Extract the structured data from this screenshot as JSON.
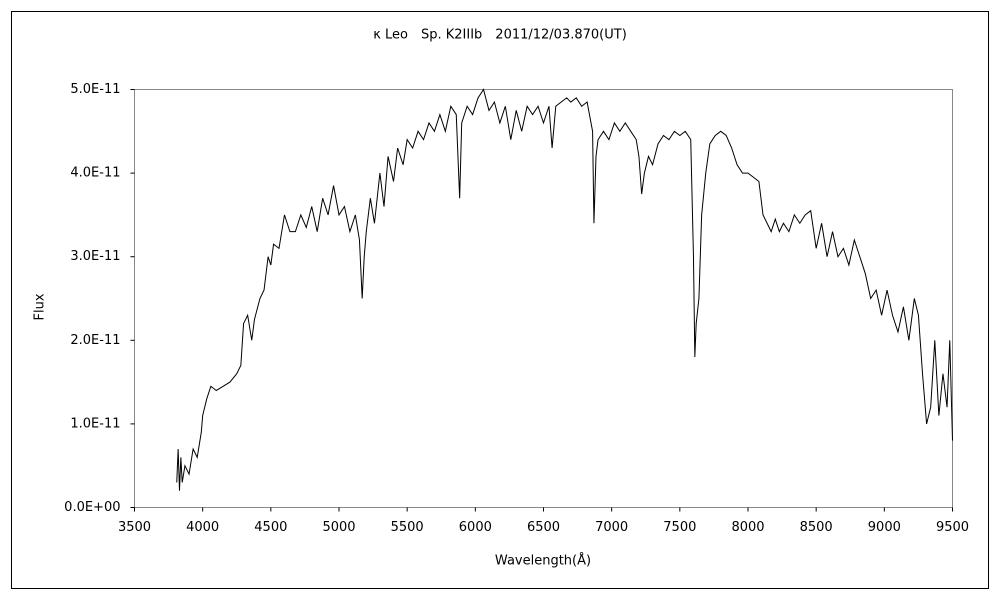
{
  "chart_data": {
    "type": "line",
    "title": "κ Leo　Sp. K2IIIb　2011/12/03.870(UT)",
    "x_label": "Wavelength(Å)",
    "y_label": "Flux",
    "xlim": [
      3500,
      9500
    ],
    "xticks": [
      3500,
      4000,
      4500,
      5000,
      5500,
      6000,
      6500,
      7000,
      7500,
      8000,
      8500,
      9000,
      9500
    ],
    "ylim": [
      0,
      5e-11
    ],
    "yticks": [
      {
        "value": 0,
        "label": "0.0E+00"
      },
      {
        "value": 1e-11,
        "label": "1.0E-11"
      },
      {
        "value": 2e-11,
        "label": "2.0E-11"
      },
      {
        "value": 3e-11,
        "label": "3.0E-11"
      },
      {
        "value": 4e-11,
        "label": "4.0E-11"
      },
      {
        "value": 5e-11,
        "label": "5.0E-11"
      }
    ],
    "grid": false,
    "color": "#000000",
    "x": [
      3810,
      3820,
      3830,
      3840,
      3850,
      3870,
      3900,
      3930,
      3960,
      3990,
      4000,
      4030,
      4060,
      4100,
      4150,
      4200,
      4250,
      4280,
      4300,
      4330,
      4360,
      4380,
      4420,
      4450,
      4480,
      4500,
      4520,
      4560,
      4600,
      4640,
      4680,
      4720,
      4760,
      4800,
      4840,
      4880,
      4920,
      4960,
      5000,
      5040,
      5080,
      5120,
      5150,
      5170,
      5185,
      5200,
      5230,
      5260,
      5300,
      5330,
      5360,
      5400,
      5430,
      5470,
      5500,
      5540,
      5580,
      5620,
      5660,
      5700,
      5740,
      5780,
      5820,
      5860,
      5885,
      5900,
      5940,
      5980,
      6020,
      6060,
      6100,
      6140,
      6180,
      6220,
      6260,
      6300,
      6340,
      6380,
      6420,
      6460,
      6500,
      6540,
      6563,
      6590,
      6630,
      6670,
      6700,
      6740,
      6780,
      6820,
      6860,
      6870,
      6885,
      6900,
      6940,
      6980,
      7020,
      7060,
      7100,
      7140,
      7180,
      7200,
      7220,
      7240,
      7270,
      7300,
      7340,
      7380,
      7420,
      7460,
      7500,
      7540,
      7580,
      7600,
      7610,
      7620,
      7640,
      7660,
      7690,
      7720,
      7760,
      7800,
      7840,
      7880,
      7920,
      7960,
      8000,
      8040,
      8080,
      8110,
      8140,
      8170,
      8200,
      8230,
      8260,
      8300,
      8340,
      8380,
      8420,
      8460,
      8500,
      8540,
      8580,
      8620,
      8660,
      8700,
      8740,
      8780,
      8820,
      8860,
      8900,
      8940,
      8980,
      9020,
      9060,
      9100,
      9140,
      9180,
      9220,
      9250,
      9280,
      9310,
      9340,
      9370,
      9400,
      9430,
      9460,
      9480,
      9500
    ],
    "values": [
      3e-12,
      7e-12,
      2e-12,
      6e-12,
      3e-12,
      5e-12,
      4e-12,
      7e-12,
      6e-12,
      9e-12,
      1.1e-11,
      1.3e-11,
      1.45e-11,
      1.4e-11,
      1.45e-11,
      1.5e-11,
      1.6e-11,
      1.7e-11,
      2.2e-11,
      2.3e-11,
      2e-11,
      2.25e-11,
      2.5e-11,
      2.6e-11,
      3e-11,
      2.9e-11,
      3.15e-11,
      3.1e-11,
      3.5e-11,
      3.3e-11,
      3.3e-11,
      3.5e-11,
      3.35e-11,
      3.6e-11,
      3.3e-11,
      3.7e-11,
      3.5e-11,
      3.85e-11,
      3.5e-11,
      3.6e-11,
      3.3e-11,
      3.5e-11,
      3.2e-11,
      2.5e-11,
      3e-11,
      3.3e-11,
      3.7e-11,
      3.4e-11,
      4e-11,
      3.6e-11,
      4.2e-11,
      3.9e-11,
      4.3e-11,
      4.1e-11,
      4.4e-11,
      4.3e-11,
      4.5e-11,
      4.4e-11,
      4.6e-11,
      4.5e-11,
      4.7e-11,
      4.5e-11,
      4.8e-11,
      4.7e-11,
      3.7e-11,
      4.6e-11,
      4.8e-11,
      4.7e-11,
      4.9e-11,
      5e-11,
      4.75e-11,
      4.85e-11,
      4.6e-11,
      4.8e-11,
      4.4e-11,
      4.75e-11,
      4.5e-11,
      4.8e-11,
      4.7e-11,
      4.8e-11,
      4.6e-11,
      4.8e-11,
      4.3e-11,
      4.8e-11,
      4.85e-11,
      4.9e-11,
      4.85e-11,
      4.9e-11,
      4.8e-11,
      4.85e-11,
      4.5e-11,
      3.4e-11,
      4.2e-11,
      4.4e-11,
      4.5e-11,
      4.4e-11,
      4.6e-11,
      4.5e-11,
      4.6e-11,
      4.5e-11,
      4.4e-11,
      4.2e-11,
      3.75e-11,
      4e-11,
      4.2e-11,
      4.1e-11,
      4.35e-11,
      4.45e-11,
      4.4e-11,
      4.5e-11,
      4.45e-11,
      4.5e-11,
      4.4e-11,
      3e-11,
      1.8e-11,
      2.2e-11,
      2.5e-11,
      3.5e-11,
      4e-11,
      4.35e-11,
      4.45e-11,
      4.5e-11,
      4.45e-11,
      4.3e-11,
      4.1e-11,
      4e-11,
      4e-11,
      3.95e-11,
      3.9e-11,
      3.5e-11,
      3.4e-11,
      3.3e-11,
      3.45e-11,
      3.3e-11,
      3.4e-11,
      3.3e-11,
      3.5e-11,
      3.4e-11,
      3.5e-11,
      3.55e-11,
      3.1e-11,
      3.4e-11,
      3e-11,
      3.3e-11,
      3e-11,
      3.1e-11,
      2.9e-11,
      3.2e-11,
      3e-11,
      2.8e-11,
      2.5e-11,
      2.6e-11,
      2.3e-11,
      2.6e-11,
      2.3e-11,
      2.1e-11,
      2.4e-11,
      2e-11,
      2.5e-11,
      2.3e-11,
      1.6e-11,
      1e-11,
      1.2e-11,
      2e-11,
      1.1e-11,
      1.6e-11,
      1.2e-11,
      2e-11,
      8e-12
    ]
  }
}
